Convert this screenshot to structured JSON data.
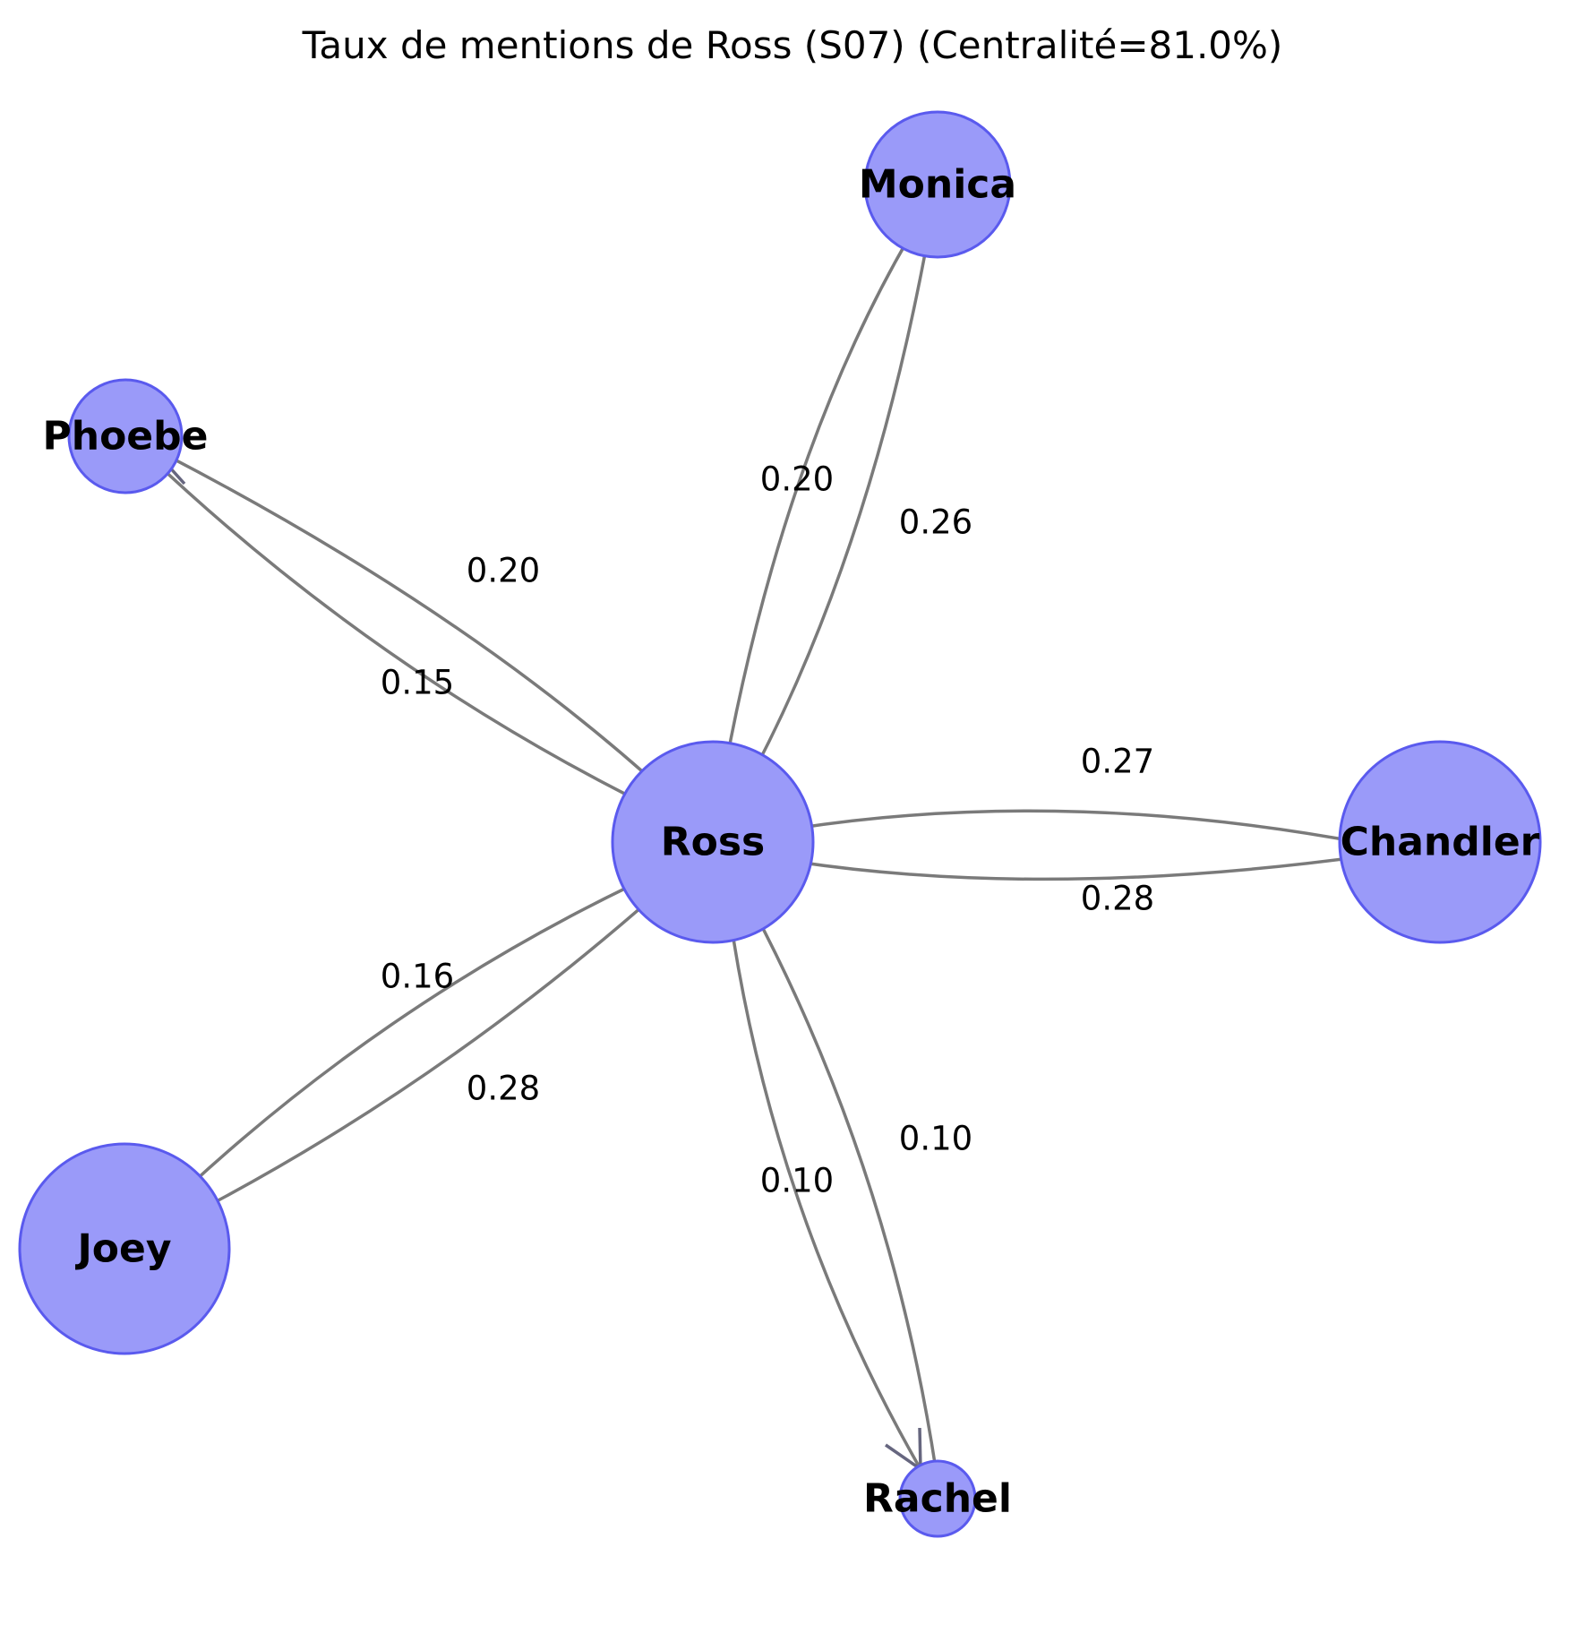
{
  "title": "Taux de mentions de Ross (S07) (Centralité=81.0%)",
  "colors": {
    "node_fill": "#9a9af9",
    "node_stroke": "#5a5aee",
    "edge": "#7a7a7a",
    "arrow": "#66667f"
  },
  "nodes": [
    {
      "id": "ross",
      "label": "Ross"
    },
    {
      "id": "monica",
      "label": "Monica"
    },
    {
      "id": "phoebe",
      "label": "Phoebe"
    },
    {
      "id": "chandler",
      "label": "Chandler"
    },
    {
      "id": "joey",
      "label": "Joey"
    },
    {
      "id": "rachel",
      "label": "Rachel"
    }
  ],
  "edges": [
    {
      "from": "ross",
      "to": "monica",
      "label": "0.26"
    },
    {
      "from": "monica",
      "to": "ross",
      "label": "0.20"
    },
    {
      "from": "ross",
      "to": "phoebe",
      "label": "0.20"
    },
    {
      "from": "phoebe",
      "to": "ross",
      "label": "0.15"
    },
    {
      "from": "ross",
      "to": "chandler",
      "label": "0.28"
    },
    {
      "from": "chandler",
      "to": "ross",
      "label": "0.27"
    },
    {
      "from": "ross",
      "to": "joey",
      "label": "0.16"
    },
    {
      "from": "joey",
      "to": "ross",
      "label": "0.28"
    },
    {
      "from": "ross",
      "to": "rachel",
      "label": "0.10"
    },
    {
      "from": "rachel",
      "to": "ross",
      "label": "0.10"
    }
  ]
}
